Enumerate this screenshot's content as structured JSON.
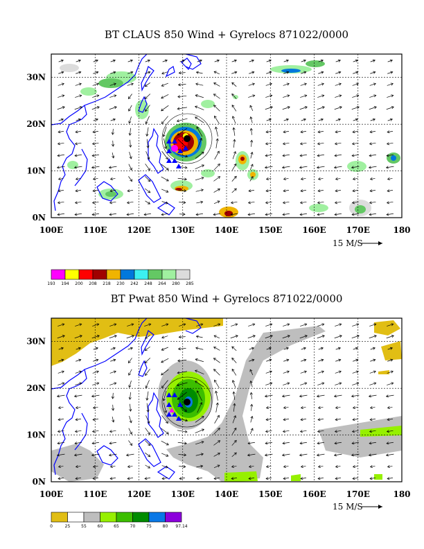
{
  "chart_data": [
    {
      "type": "heatmap",
      "title": "BT CLAUS 850 Wind + Gyrelocs 871022/0000",
      "x_ticks": [
        "100E",
        "110E",
        "120E",
        "130E",
        "140E",
        "150E",
        "160E",
        "170E",
        "180"
      ],
      "y_ticks": [
        "0N",
        "10N",
        "20N",
        "30N"
      ],
      "xlim": [
        100,
        180
      ],
      "ylim": [
        0,
        35
      ],
      "grid": true,
      "reference_vector": "15 M/S",
      "colorbar": {
        "labels": [
          "193",
          "194",
          "200",
          "208",
          "218",
          "230",
          "242",
          "248",
          "264",
          "280",
          "285"
        ],
        "colors": [
          "#ff00ff",
          "#ffff00",
          "#ff0000",
          "#a00000",
          "#f0b400",
          "#0078dc",
          "#3cf0f0",
          "#64c864",
          "#a0f0a0",
          "#dcdcdc"
        ]
      },
      "gyre_center": {
        "lon": 131,
        "lat": 18
      }
    },
    {
      "type": "heatmap",
      "title": "BT Pwat 850 Wind + Gyrelocs 871022/0000",
      "x_ticks": [
        "100E",
        "110E",
        "120E",
        "130E",
        "140E",
        "150E",
        "160E",
        "170E",
        "180"
      ],
      "y_ticks": [
        "0N",
        "10N",
        "20N",
        "30N"
      ],
      "xlim": [
        100,
        180
      ],
      "ylim": [
        0,
        35
      ],
      "grid": true,
      "reference_vector": "15 M/S",
      "colorbar": {
        "labels": [
          "0",
          "25",
          "55",
          "60",
          "65",
          "70",
          "75",
          "80",
          "97.14"
        ],
        "colors": [
          "#e1be14",
          "#ffffff",
          "#bebebe",
          "#96f000",
          "#3cbe00",
          "#008c00",
          "#0a78e6",
          "#8c00dc"
        ]
      },
      "gyre_center": {
        "lon": 131,
        "lat": 17
      }
    }
  ],
  "colors": {
    "coastline": "#0000ff",
    "grid": "#000000",
    "vector": "#000000"
  }
}
